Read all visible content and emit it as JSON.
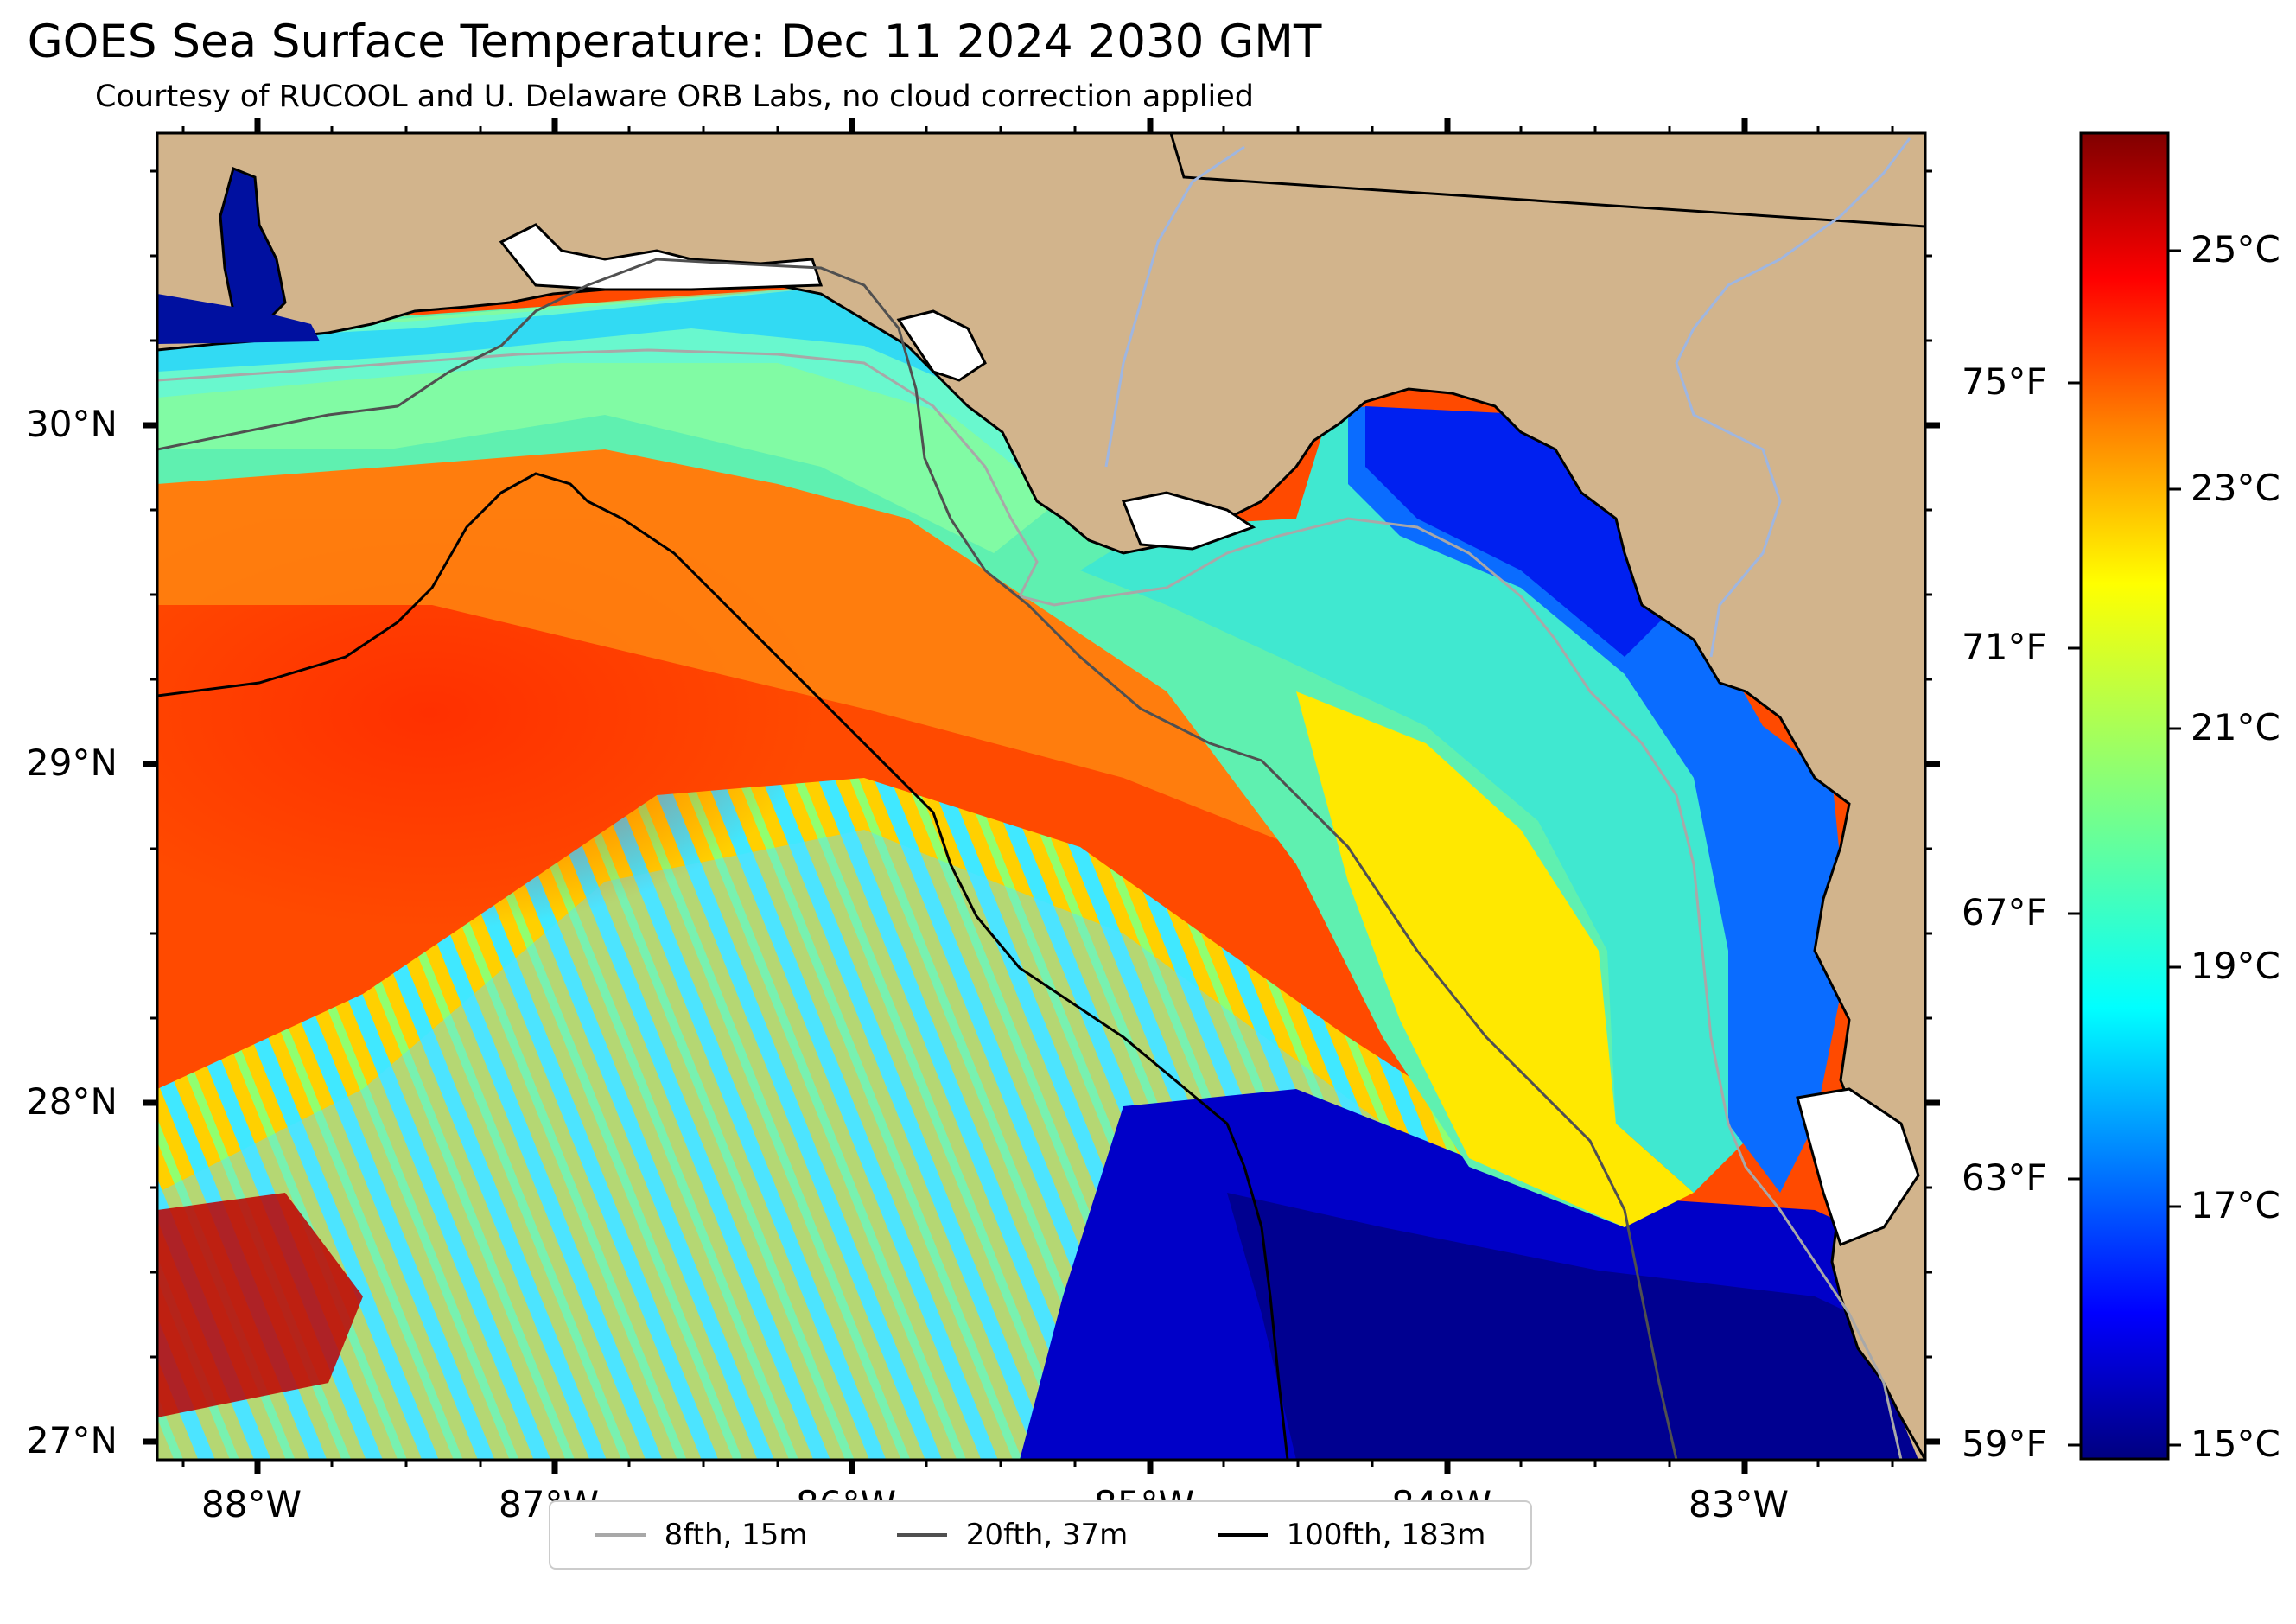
{
  "title": "GOES Sea Surface Temperature: Dec 11 2024 2030 GMT",
  "subtitle": "Courtesy of RUCOOL and U. Delaware ORB Labs, no cloud correction applied",
  "map": {
    "land_color": "#d2b48c",
    "longitude_labels": [
      "88°W",
      "87°W",
      "86°W",
      "85°W",
      "84°W",
      "83°W"
    ],
    "latitude_labels": [
      "30°N",
      "29°N",
      "28°N",
      "27°N"
    ]
  },
  "colorbar": {
    "celsius_labels": [
      "25°C",
      "23°C",
      "21°C",
      "19°C",
      "17°C",
      "15°C"
    ],
    "fahrenheit_labels": [
      "75°F",
      "71°F",
      "67°F",
      "63°F",
      "59°F"
    ],
    "colormap": [
      "#800000",
      "#ff0000",
      "#ff8000",
      "#ffff00",
      "#80ff80",
      "#00ffff",
      "#0080ff",
      "#0000ff",
      "#000080"
    ]
  },
  "legend": [
    {
      "label": "8fth, 15m",
      "color": "#a8a8a8"
    },
    {
      "label": "20fth, 37m",
      "color": "#505050"
    },
    {
      "label": "100fth, 183m",
      "color": "#000000"
    }
  ]
}
